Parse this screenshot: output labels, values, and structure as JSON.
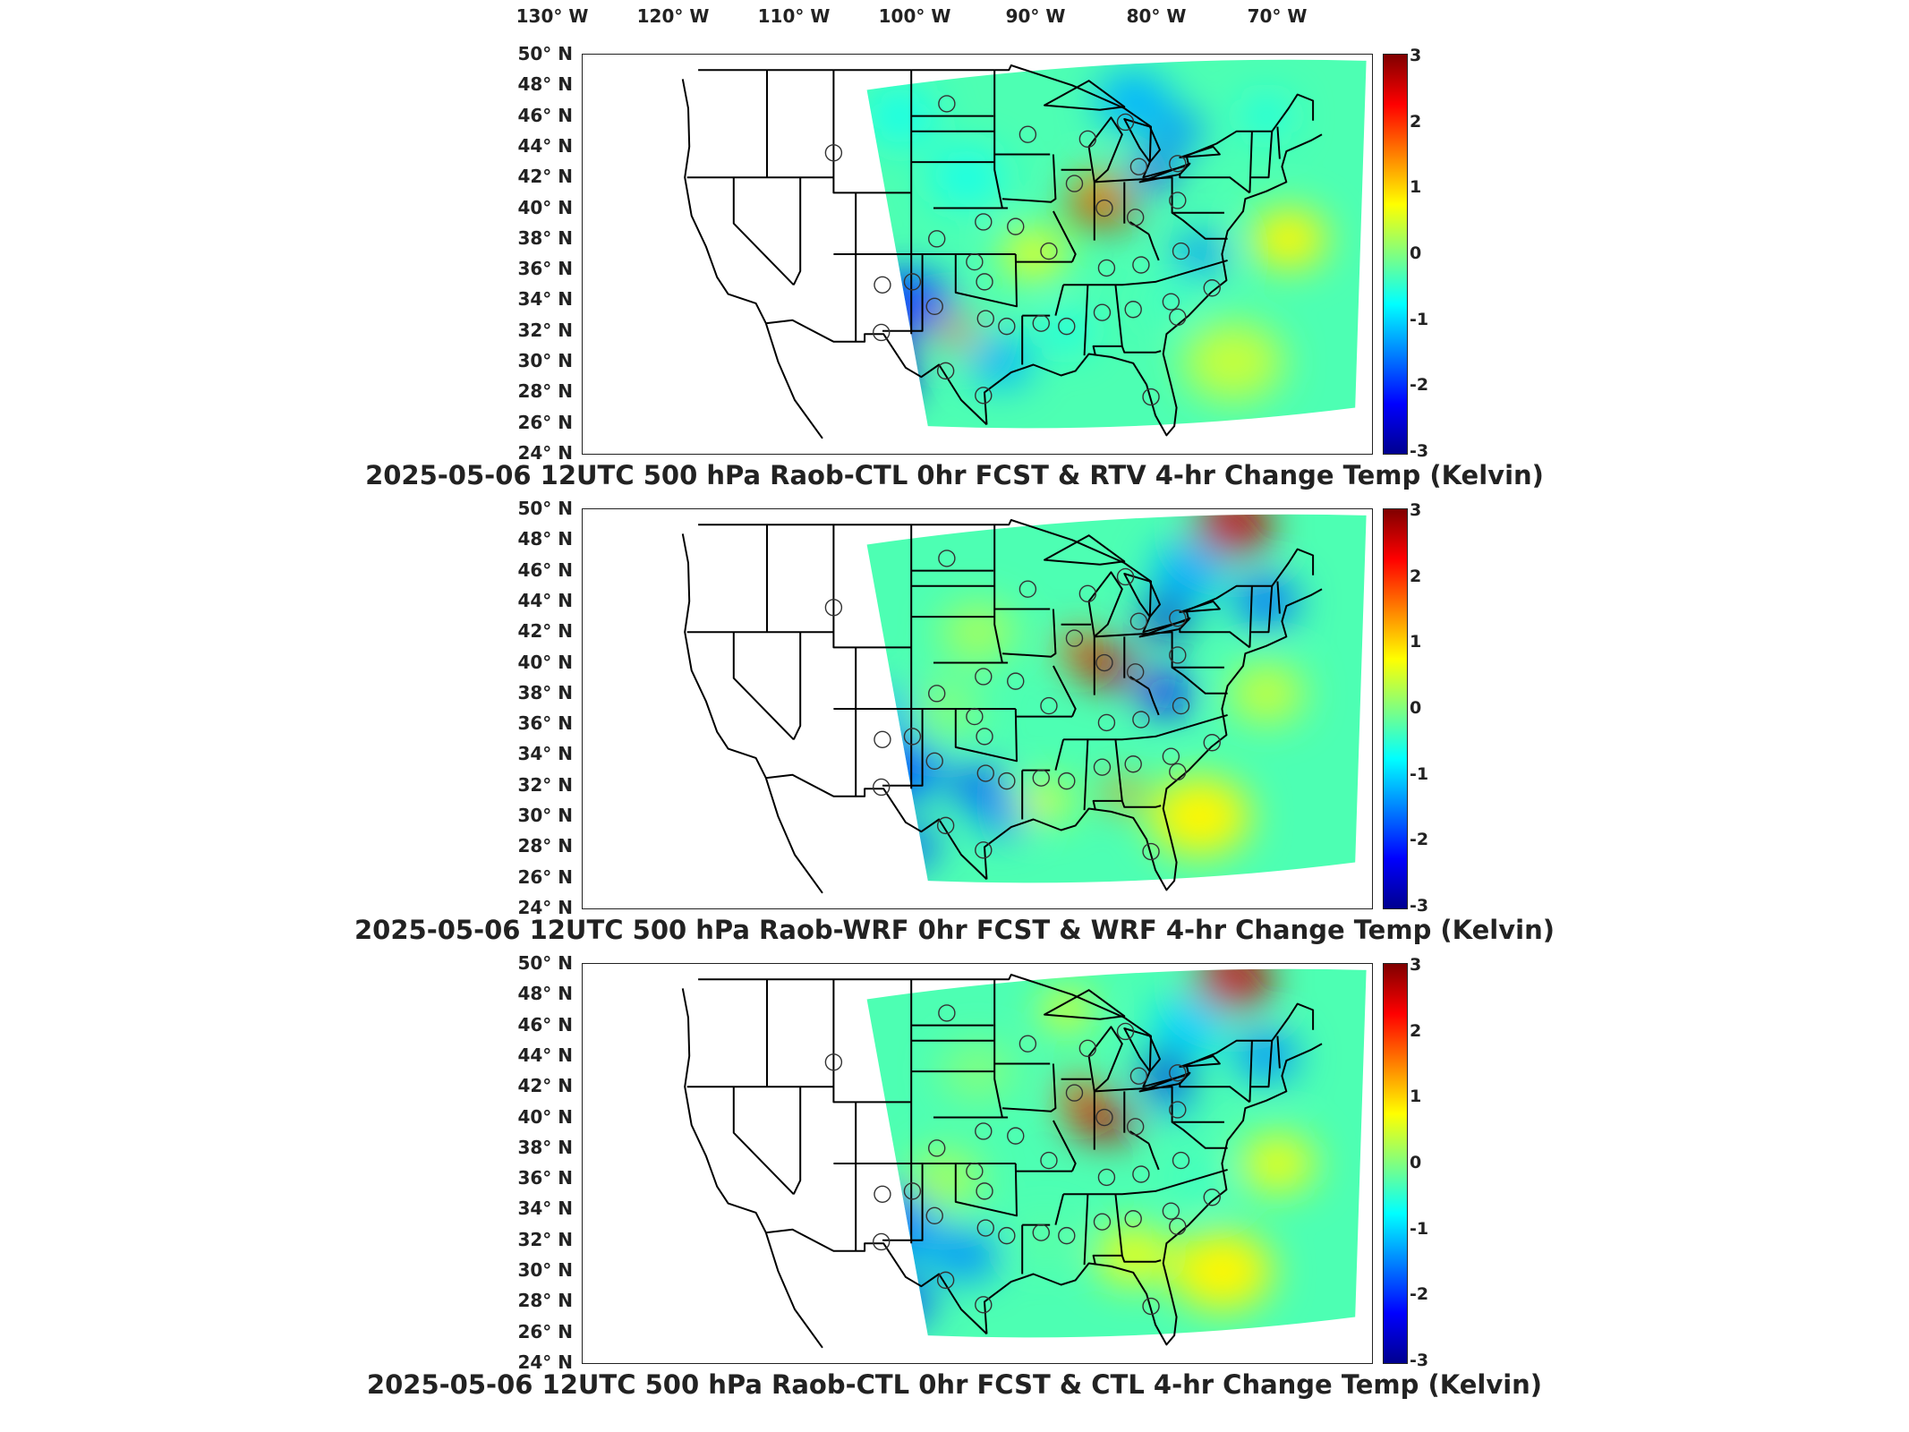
{
  "longitude_labels": [
    {
      "deg": "130",
      "hemi": "W"
    },
    {
      "deg": "120",
      "hemi": "W"
    },
    {
      "deg": "110",
      "hemi": "W"
    },
    {
      "deg": "100",
      "hemi": "W"
    },
    {
      "deg": "90",
      "hemi": "W"
    },
    {
      "deg": "80",
      "hemi": "W"
    },
    {
      "deg": "70",
      "hemi": "W"
    }
  ],
  "latitude_labels": [
    {
      "deg": "50",
      "hemi": "N"
    },
    {
      "deg": "48",
      "hemi": "N"
    },
    {
      "deg": "46",
      "hemi": "N"
    },
    {
      "deg": "44",
      "hemi": "N"
    },
    {
      "deg": "42",
      "hemi": "N"
    },
    {
      "deg": "40",
      "hemi": "N"
    },
    {
      "deg": "38",
      "hemi": "N"
    },
    {
      "deg": "36",
      "hemi": "N"
    },
    {
      "deg": "34",
      "hemi": "N"
    },
    {
      "deg": "32",
      "hemi": "N"
    },
    {
      "deg": "30",
      "hemi": "N"
    },
    {
      "deg": "28",
      "hemi": "N"
    },
    {
      "deg": "26",
      "hemi": "N"
    },
    {
      "deg": "24",
      "hemi": "N"
    }
  ],
  "degree_symbol": "°",
  "colorbar": {
    "ticks": [
      "3",
      "2",
      "1",
      "0",
      "-1",
      "-2",
      "-3"
    ],
    "colors": [
      "#00008f",
      "#0000ff",
      "#0080ff",
      "#00ffff",
      "#80ff80",
      "#ffff00",
      "#ff8000",
      "#ff0000",
      "#800000"
    ]
  },
  "panels": [
    {
      "title": "2025-05-06 12UTC 500 hPa Raob-CTL 0hr FCST & RTV 4-hr Change Temp (Kelvin)"
    },
    {
      "title": "2025-05-06 12UTC 500 hPa Raob-WRF 0hr FCST & WRF 4-hr Change Temp (Kelvin)"
    },
    {
      "title": "2025-05-06 12UTC 500 hPa Raob-CTL 0hr FCST & CTL 4-hr Change Temp (Kelvin)"
    }
  ]
}
